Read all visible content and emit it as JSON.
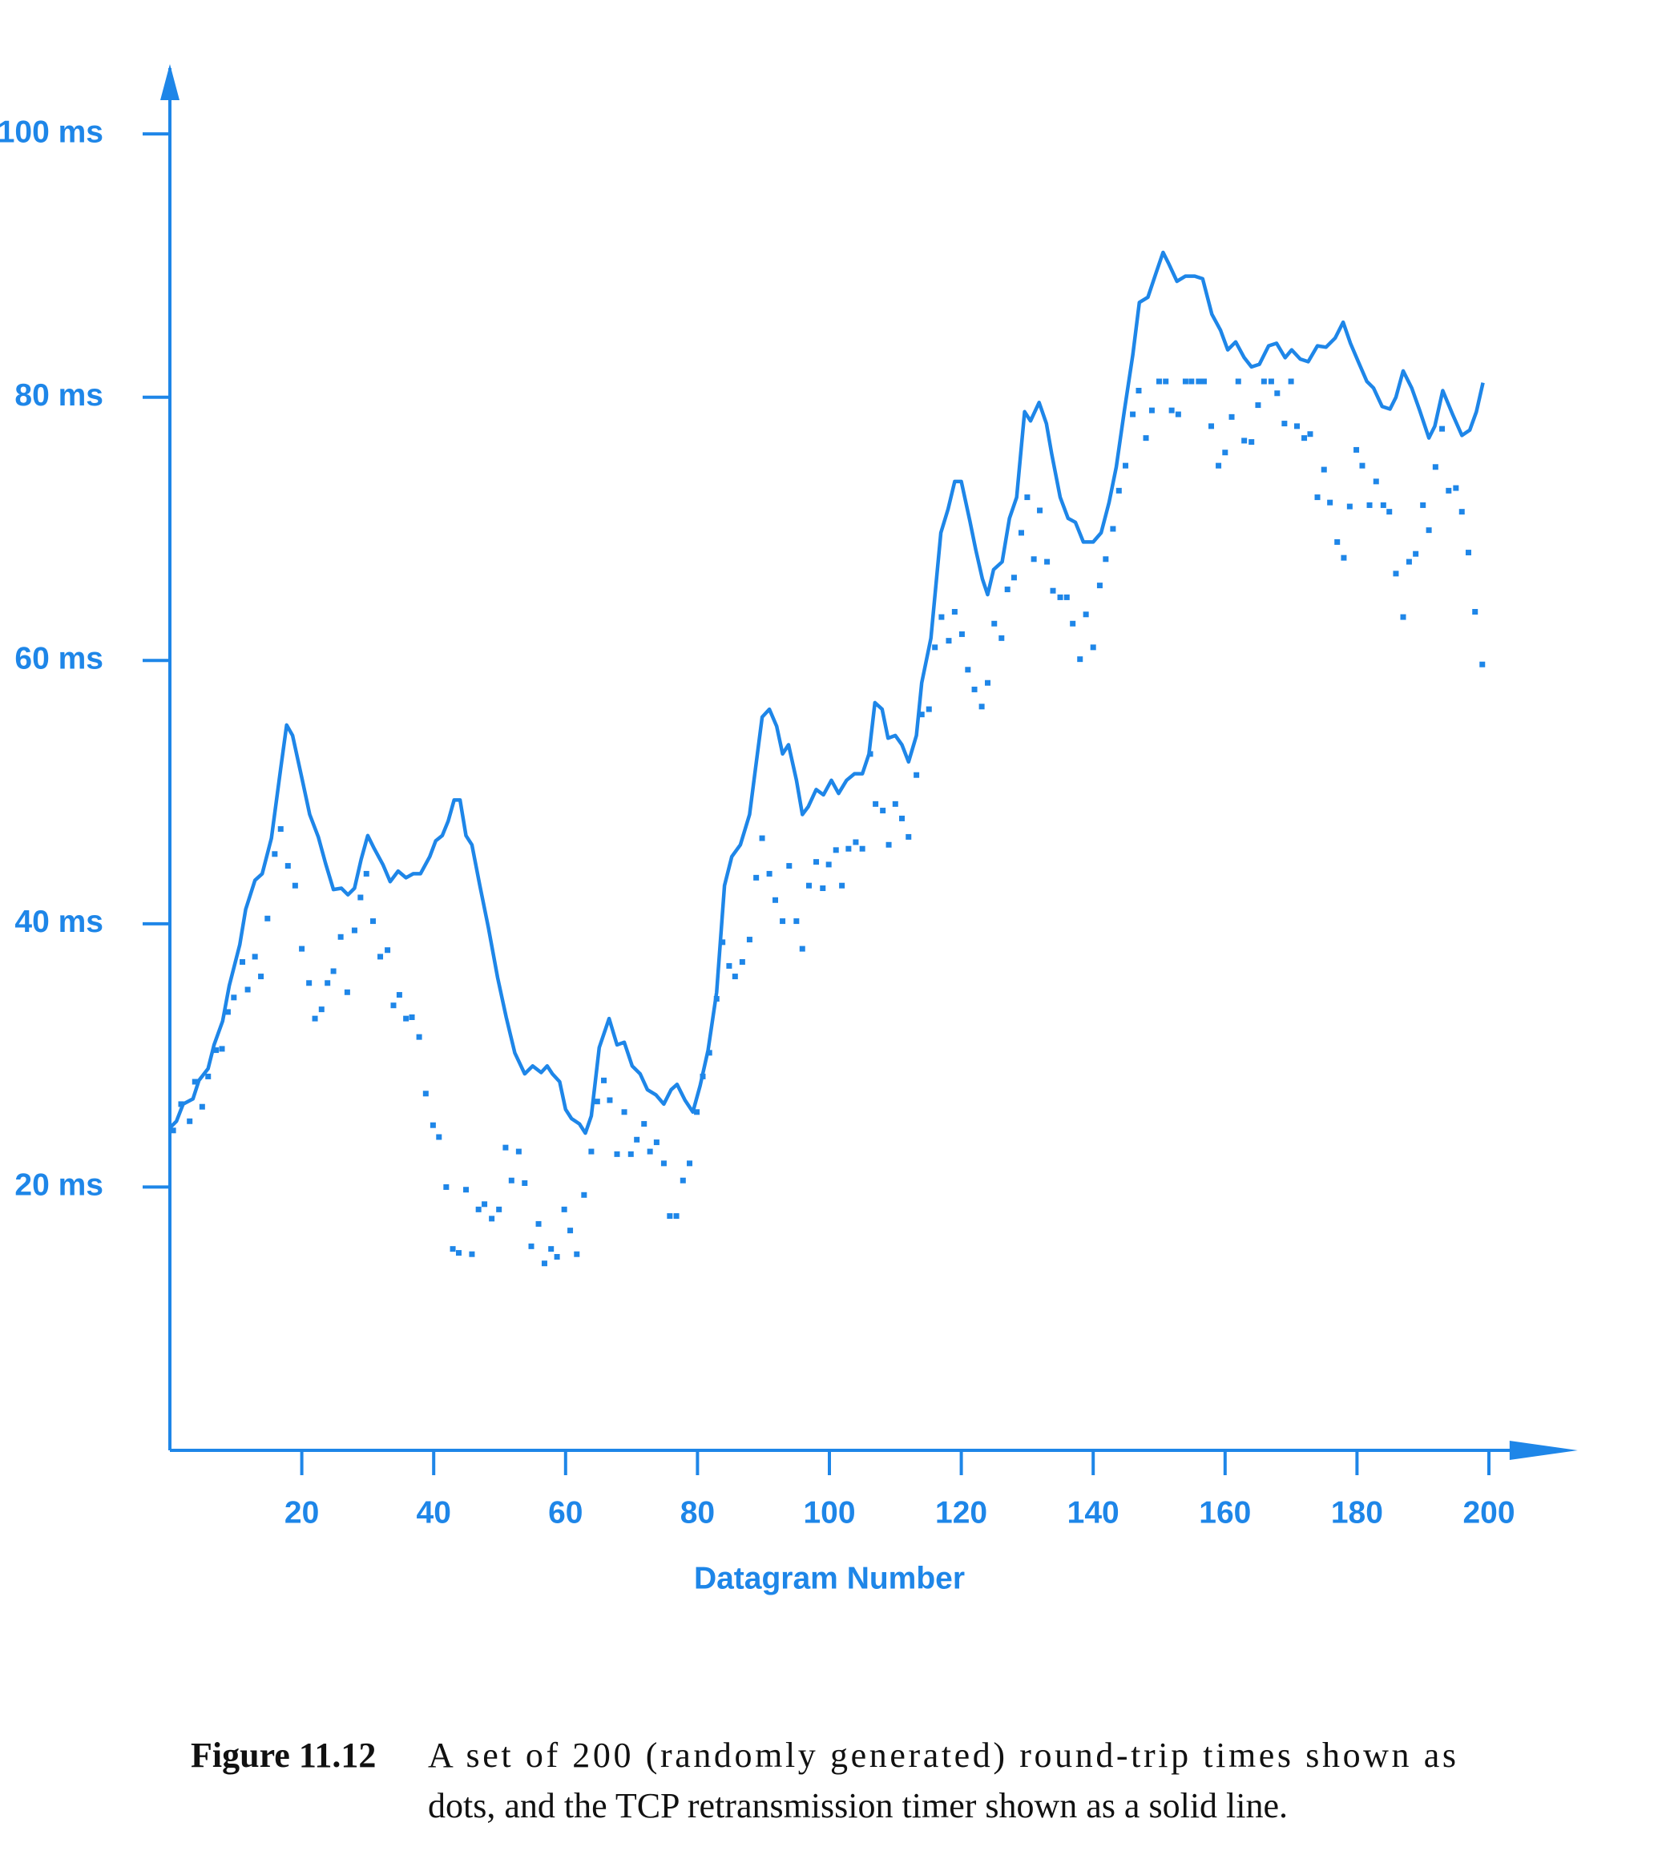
{
  "chart_data": {
    "type": "line",
    "color": "#1e86e8",
    "xlabel": "Datagram Number",
    "figure_label": "Figure 11.12",
    "caption": [
      "A set of 200 (randomly generated) round-trip times shown as",
      "dots, and the TCP retransmission timer shown as a solid line."
    ],
    "xlim": [
      0,
      208
    ],
    "ylim": [
      0,
      105
    ],
    "xticks": [
      20,
      40,
      60,
      80,
      100,
      120,
      140,
      160,
      180,
      200
    ],
    "yticks": [
      {
        "value": 20,
        "label": "20 ms"
      },
      {
        "value": 40,
        "label": "40 ms"
      },
      {
        "value": 60,
        "label": "60 ms"
      },
      {
        "value": 80,
        "label": "80 ms"
      },
      {
        "value": 100,
        "label": "100 ms"
      }
    ],
    "series": [
      {
        "type": "scatter",
        "x": [
          0.5,
          1.7,
          3,
          3.8,
          4.9,
          5.8,
          7,
          7.9,
          8.8,
          9.7,
          11,
          11.8,
          12.9,
          13.8,
          14.8,
          15.9,
          16.8,
          17.9,
          19,
          20,
          21.1,
          22,
          23,
          23.9,
          24.8,
          25.9,
          26.9,
          28,
          28.9,
          29.8,
          30.8,
          31.9,
          33,
          33.9,
          34.8,
          35.8,
          36.7,
          37.8,
          38.8,
          39.9,
          40.8,
          41.9,
          42.9,
          43.8,
          44.9,
          45.8,
          46.8,
          47.7,
          48.8,
          49.9,
          50.9,
          51.8,
          52.9,
          53.8,
          54.8,
          55.9,
          56.8,
          57.8,
          58.7,
          59.8,
          60.7,
          61.7,
          62.8,
          63.9,
          64.8,
          65.8,
          66.7,
          67.8,
          68.9,
          69.9,
          70.8,
          71.9,
          72.8,
          73.8,
          74.9,
          75.8,
          76.8,
          77.8,
          78.8,
          79.9,
          80.8,
          81.8,
          82.9,
          83.8,
          84.8,
          85.7,
          86.8,
          87.9,
          88.9,
          89.8,
          90.9,
          91.8,
          92.9,
          93.9,
          95,
          95.9,
          96.9,
          98,
          99,
          99.9,
          101,
          101.9,
          102.9,
          104,
          105,
          106.2,
          107,
          108.1,
          109,
          110,
          111,
          112,
          113.2,
          114,
          115.1,
          116,
          117,
          118.1,
          119,
          120.1,
          121,
          122,
          123.1,
          124,
          125,
          126.1,
          127,
          128,
          129.1,
          130,
          131,
          131.9,
          133,
          133.9,
          135,
          136,
          136.9,
          138,
          138.9,
          140,
          141,
          141.9,
          143,
          143.9,
          144.9,
          146,
          146.9,
          148,
          148.9,
          150,
          151,
          151.9,
          152.9,
          154,
          154.9,
          156,
          156.8,
          157.9,
          159,
          160,
          161,
          162,
          162.9,
          164,
          165,
          165.9,
          167,
          167.9,
          169,
          170,
          170.9,
          172,
          172.9,
          174,
          175,
          175.9,
          177,
          178,
          178.9,
          179.9,
          180.8,
          181.9,
          182.9,
          184,
          184.9,
          185.9,
          187,
          187.9,
          188.9,
          190,
          190.9,
          191.9,
          192.9,
          193.9,
          195,
          195.9,
          196.9,
          197.9,
          199
        ],
        "values": [
          24.3,
          26.3,
          25,
          28,
          26.1,
          28.4,
          30.4,
          30.5,
          33.3,
          34.4,
          37.1,
          35,
          37.5,
          36,
          40.4,
          45.3,
          47.2,
          44.4,
          42.9,
          38.1,
          35.5,
          32.8,
          33.5,
          35.5,
          36.4,
          39,
          34.8,
          39.5,
          42,
          43.8,
          40.2,
          37.5,
          38,
          33.8,
          34.6,
          32.8,
          32.9,
          31.4,
          27.1,
          24.7,
          23.8,
          20,
          15.3,
          15,
          19.8,
          14.9,
          18.3,
          18.7,
          17.6,
          18.3,
          23,
          20.5,
          22.7,
          20.3,
          15.5,
          17.2,
          14.2,
          15.3,
          14.7,
          18.3,
          16.7,
          14.9,
          19.4,
          22.7,
          26.5,
          28.1,
          26.6,
          22.5,
          25.7,
          22.5,
          23.6,
          24.8,
          22.7,
          23.4,
          21.8,
          17.8,
          17.8,
          20.5,
          21.8,
          25.7,
          28.4,
          30.2,
          34.3,
          38.6,
          36.8,
          36,
          37.1,
          38.8,
          43.5,
          46.5,
          43.8,
          41.8,
          40.2,
          44.4,
          40.2,
          38.1,
          42.9,
          44.7,
          42.7,
          44.5,
          45.6,
          42.9,
          45.7,
          46.2,
          45.7,
          52.9,
          49.1,
          48.6,
          46,
          49.1,
          48,
          46.6,
          51.3,
          55.9,
          56.3,
          61,
          63.3,
          61.5,
          63.7,
          62,
          59.3,
          57.8,
          56.5,
          58.3,
          62.8,
          61.7,
          65.4,
          66.3,
          69.7,
          72.4,
          67.7,
          71.4,
          67.5,
          65.3,
          64.8,
          64.8,
          62.8,
          60.1,
          63.5,
          61,
          65.7,
          67.7,
          70,
          72.9,
          74.8,
          78.7,
          80.5,
          76.9,
          79,
          81.2,
          81.2,
          79,
          78.7,
          81.2,
          81.2,
          81.2,
          81.2,
          77.8,
          74.8,
          75.8,
          78.5,
          81.2,
          76.7,
          76.6,
          79.4,
          81.2,
          81.2,
          80.3,
          78,
          81.2,
          77.8,
          76.9,
          77.2,
          72.4,
          74.5,
          72,
          69,
          67.8,
          71.7,
          76,
          74.8,
          71.8,
          73.6,
          71.8,
          71.3,
          66.6,
          63.3,
          67.5,
          68.1,
          71.8,
          69.9,
          74.7,
          77.6,
          72.9,
          73.1,
          71.3,
          68.2,
          63.7,
          59.7
        ]
      },
      {
        "type": "line",
        "x": [
          0,
          1,
          2,
          3.5,
          4.4,
          5.8,
          6.7,
          8,
          9,
          10.6,
          11.5,
          12.9,
          14,
          15.4,
          16.8,
          17.7,
          18.6,
          20,
          21.2,
          22.5,
          23.6,
          24.8,
          26,
          27,
          28,
          29,
          30,
          31,
          32.3,
          33.4,
          34.6,
          35.8,
          36.9,
          38,
          39.4,
          40.3,
          41.3,
          42.2,
          43.1,
          44,
          44.9,
          45.8,
          47,
          48.3,
          49.7,
          51,
          52.3,
          53.8,
          55,
          56.3,
          57.2,
          58,
          59.1,
          60,
          60.9,
          62.1,
          63,
          63.9,
          65.1,
          66.6,
          67.8,
          68.9,
          70.1,
          71.3,
          72.4,
          73.7,
          74.9,
          76,
          76.9,
          78.1,
          79.3,
          80.4,
          81.6,
          82.9,
          84.1,
          85.2,
          86.5,
          87.9,
          88.8,
          89.8,
          90.9,
          92,
          92.9,
          93.8,
          95,
          95.9,
          96.8,
          98,
          99.1,
          100.3,
          101.4,
          102.6,
          103.8,
          105,
          106,
          106.9,
          108,
          108.9,
          110,
          111,
          112,
          113.2,
          114,
          115.4,
          116.9,
          118,
          119,
          120,
          121.3,
          122.2,
          123.2,
          124,
          124.9,
          126.2,
          127.3,
          128.4,
          129.6,
          130.5,
          131.8,
          132.9,
          133.7,
          135,
          136.2,
          137.3,
          138.5,
          140,
          141.2,
          142.4,
          143.5,
          144.7,
          146,
          147,
          148.3,
          149.5,
          150.6,
          151.5,
          152.7,
          154,
          155.4,
          156.6,
          158,
          159.3,
          160.4,
          161.6,
          162.9,
          164,
          165.2,
          166.6,
          167.8,
          169.1,
          170.1,
          171.4,
          172.6,
          174,
          175.3,
          176.7,
          177.9,
          179,
          180.2,
          181.5,
          182.5,
          183.8,
          185,
          185.9,
          187,
          188.3,
          189.5,
          190.9,
          191.8,
          193,
          194.5,
          195.9,
          197.1,
          198.1,
          199.1
        ],
        "values": [
          24.5,
          25,
          26.3,
          26.7,
          28.1,
          29,
          30.8,
          32.6,
          35.3,
          38.4,
          41.1,
          43.3,
          43.8,
          46.5,
          51.8,
          55.1,
          54.3,
          51.1,
          48.3,
          46.6,
          44.6,
          42.6,
          42.7,
          42.2,
          42.7,
          44.9,
          46.7,
          45.7,
          44.5,
          43.2,
          44,
          43.5,
          43.8,
          43.8,
          45.1,
          46.3,
          46.7,
          47.8,
          49.4,
          49.4,
          46.7,
          46,
          42.9,
          39.7,
          35.9,
          32.9,
          30.2,
          28.6,
          29.2,
          28.7,
          29.2,
          28.6,
          28,
          25.9,
          25.2,
          24.8,
          24.1,
          25.4,
          30.6,
          32.8,
          30.8,
          31,
          29.2,
          28.6,
          27.4,
          27,
          26.3,
          27.4,
          27.8,
          26.6,
          25.7,
          27.7,
          30.4,
          34.8,
          42.9,
          45.1,
          46,
          48.3,
          51.8,
          55.7,
          56.3,
          55,
          52.9,
          53.6,
          50.9,
          48.3,
          48.9,
          50.2,
          49.8,
          50.9,
          49.9,
          50.9,
          51.4,
          51.4,
          52.9,
          56.8,
          56.3,
          54.1,
          54.3,
          53.6,
          52.3,
          54.3,
          58.3,
          61.7,
          69.7,
          71.5,
          73.6,
          73.6,
          70.6,
          68.4,
          66.2,
          65,
          66.9,
          67.5,
          70.8,
          72.4,
          78.9,
          78.2,
          79.6,
          78,
          75.7,
          72.4,
          70.8,
          70.5,
          69,
          69,
          69.7,
          72,
          74.7,
          78.9,
          83.2,
          87.2,
          87.6,
          89.4,
          91,
          90.1,
          88.8,
          89.2,
          89.2,
          89,
          86.3,
          85.1,
          83.6,
          84.2,
          83,
          82.3,
          82.5,
          83.9,
          84.1,
          83,
          83.6,
          82.9,
          82.7,
          83.9,
          83.8,
          84.5,
          85.7,
          84.1,
          82.7,
          81.2,
          80.7,
          79.3,
          79.1,
          80,
          82,
          80.7,
          79,
          76.9,
          77.8,
          80.5,
          78.7,
          77.1,
          77.5,
          78.9,
          81.1
        ]
      }
    ]
  }
}
